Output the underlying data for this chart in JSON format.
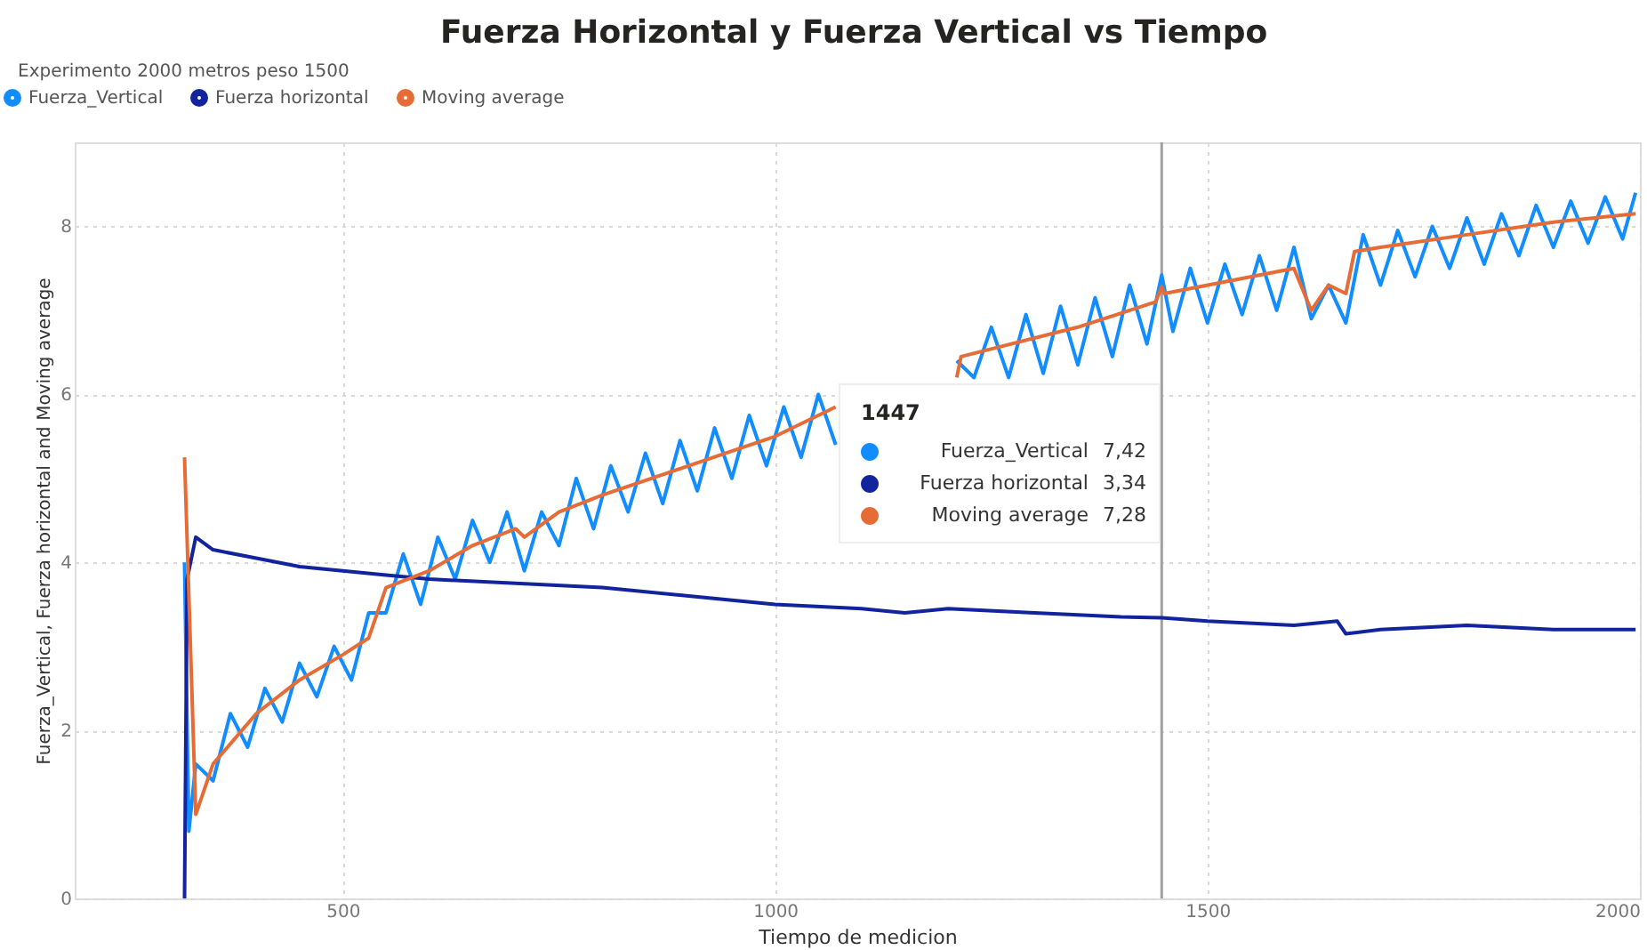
{
  "chart_data": {
    "type": "line",
    "title": "Fuerza Horizontal y Fuerza Vertical vs Tiempo",
    "subtitle": "Experimento 2000 metros peso 1500",
    "xlabel": "Tiempo de medicion",
    "ylabel": "Fuerza_Vertical, Fuerza horizontal and Moving average",
    "xlim": [
      190,
      2000
    ],
    "xticks": [
      500,
      1000,
      1500,
      2000
    ],
    "ylim": [
      0,
      9
    ],
    "yticks": [
      0,
      2,
      4,
      6,
      8
    ],
    "grid": true,
    "legend": "top left",
    "marker": "none",
    "line_style": "solid",
    "ref_lines": [
      {
        "axis": "x",
        "value": 1447,
        "label": null,
        "color": "#a0a0a0"
      }
    ],
    "annotations": [
      "1447",
      "Fuerza_Vertical",
      "7,42",
      "Fuerza horizontal",
      "3,34",
      "Moving average",
      "7,28"
    ],
    "series": [
      {
        "name": "Fuerza_Vertical",
        "color": "#118dff",
        "x": [
          317,
          322,
          330,
          350,
          370,
          390,
          410,
          430,
          450,
          470,
          490,
          510,
          530,
          550,
          570,
          590,
          610,
          630,
          650,
          670,
          690,
          710,
          730,
          750,
          770,
          790,
          810,
          830,
          850,
          870,
          890,
          910,
          930,
          950,
          970,
          990,
          1010,
          1030,
          1050,
          1070,
          1090,
          1110,
          1130,
          1150,
          1170,
          1190,
          1210,
          1230,
          1250,
          1270,
          1290,
          1310,
          1330,
          1350,
          1370,
          1390,
          1410,
          1430,
          1447,
          1460,
          1480,
          1500,
          1520,
          1540,
          1560,
          1580,
          1600,
          1620,
          1640,
          1660,
          1680,
          1700,
          1720,
          1740,
          1760,
          1780,
          1800,
          1820,
          1840,
          1860,
          1880,
          1900,
          1920,
          1940,
          1960,
          1980,
          1995
        ],
        "values": [
          4.0,
          0.8,
          1.6,
          1.4,
          2.2,
          1.8,
          2.5,
          2.1,
          2.8,
          2.4,
          3.0,
          2.6,
          3.4,
          3.4,
          4.1,
          3.5,
          4.3,
          3.8,
          4.5,
          4.0,
          4.6,
          3.9,
          4.6,
          4.2,
          5.0,
          4.4,
          5.15,
          4.6,
          5.3,
          4.7,
          5.45,
          4.85,
          5.6,
          5.0,
          5.75,
          5.15,
          5.85,
          5.25,
          6.0,
          5.4,
          null,
          null,
          null,
          null,
          null,
          null,
          6.4,
          6.2,
          6.8,
          6.2,
          6.95,
          6.25,
          7.05,
          6.35,
          7.15,
          6.45,
          7.3,
          6.6,
          7.42,
          6.75,
          7.5,
          6.85,
          7.55,
          6.95,
          7.65,
          7.0,
          7.75,
          6.9,
          7.3,
          6.85,
          7.9,
          7.3,
          7.95,
          7.4,
          8.0,
          7.5,
          8.1,
          7.55,
          8.15,
          7.65,
          8.25,
          7.75,
          8.3,
          7.8,
          8.35,
          7.85,
          8.4
        ]
      },
      {
        "name": "Fuerza horizontal",
        "color": "#12239e",
        "x": [
          317,
          320,
          330,
          350,
          400,
          450,
          500,
          550,
          600,
          700,
          800,
          900,
          1000,
          1100,
          1150,
          1200,
          1300,
          1400,
          1447,
          1500,
          1600,
          1650,
          1660,
          1700,
          1800,
          1900,
          1995
        ],
        "values": [
          0,
          3.8,
          4.3,
          4.15,
          4.05,
          3.95,
          3.9,
          3.85,
          3.8,
          3.75,
          3.7,
          3.6,
          3.5,
          3.45,
          3.4,
          3.45,
          3.4,
          3.35,
          3.34,
          3.3,
          3.25,
          3.3,
          3.15,
          3.2,
          3.25,
          3.2,
          3.2
        ]
      },
      {
        "name": "Moving average",
        "color": "#e66c37",
        "x": [
          317,
          330,
          350,
          400,
          450,
          500,
          530,
          550,
          600,
          650,
          700,
          710,
          750,
          800,
          900,
          1000,
          1070,
          1090,
          1200,
          1210,
          1215,
          1350,
          1440,
          1447,
          1450,
          1600,
          1620,
          1640,
          1660,
          1670,
          1700,
          1800,
          1900,
          1995
        ],
        "values": [
          5.25,
          1.0,
          1.6,
          2.2,
          2.6,
          2.9,
          3.1,
          3.7,
          3.9,
          4.2,
          4.4,
          4.3,
          4.6,
          4.8,
          5.15,
          5.5,
          5.85,
          null,
          null,
          6.2,
          6.45,
          6.8,
          7.1,
          7.28,
          7.2,
          7.5,
          7.0,
          7.3,
          7.2,
          7.7,
          7.75,
          7.9,
          8.05,
          8.15
        ]
      }
    ]
  }
}
